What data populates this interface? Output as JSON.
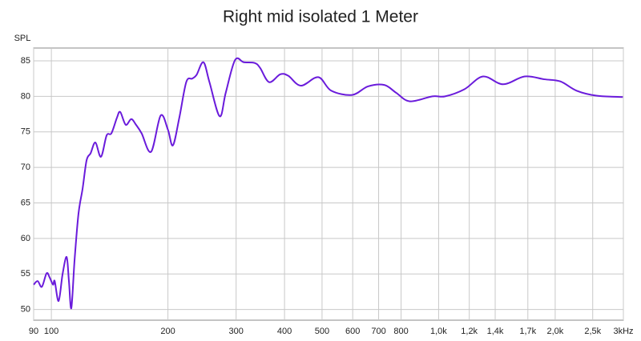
{
  "chart_data": {
    "type": "line",
    "title": "Right mid isolated 1 Meter",
    "y_label": "SPL",
    "log_x": true,
    "grid": true,
    "xlim": [
      90,
      3000
    ],
    "ylim": [
      48.5,
      86.8
    ],
    "xticks": [
      90,
      100,
      200,
      300,
      400,
      500,
      600,
      700,
      800,
      {
        "value": 1000,
        "label": "1,0k"
      },
      {
        "value": 1200,
        "label": "1,2k"
      },
      {
        "value": 1400,
        "label": "1,4k"
      },
      {
        "value": 1700,
        "label": "1,7k"
      },
      {
        "value": 2000,
        "label": "2,0k"
      },
      {
        "value": 2500,
        "label": "2,5k"
      },
      {
        "value": 3000,
        "label": "3kHz"
      }
    ],
    "yticks": [
      50,
      55,
      60,
      65,
      70,
      75,
      80,
      85
    ],
    "series": [
      {
        "color": "#6a1bdb",
        "x": [
          90,
          92.2,
          94.5,
          97.2,
          99,
          101,
          102,
          104.4,
          106.9,
          109.5,
          111,
          112.6,
          114.8,
          117.5,
          120.4,
          123.3,
          126.3,
          129.9,
          134.3,
          138.9,
          142.9,
          147.7,
          150.6,
          155.6,
          160.8,
          165.4,
          171,
          180.9,
          191.5,
          200,
          206,
          214,
          223,
          231,
          237,
          247,
          256,
          272,
          282,
          298,
          314,
          335,
          346,
          365,
          390,
          409,
          441,
          489,
          528,
          598,
          657,
          724,
          777,
          843,
          963,
          1039,
          1166,
          1302,
          1467,
          1668,
          1876,
          2063,
          2271,
          2554,
          2990
        ],
        "values": [
          53.5,
          54,
          53.2,
          55.1,
          54.5,
          53.5,
          54,
          51.2,
          55,
          57.4,
          54,
          50.2,
          57,
          63.5,
          67,
          71,
          72,
          73.5,
          71.5,
          74.5,
          74.8,
          77,
          77.8,
          76,
          76.8,
          76,
          74.8,
          72.2,
          77.3,
          75.3,
          73.1,
          77,
          82,
          82.5,
          83,
          84.8,
          82,
          77.2,
          80.5,
          85.1,
          84.8,
          84.7,
          84,
          82,
          83.1,
          82.9,
          81.5,
          82.7,
          80.8,
          80.2,
          81.4,
          81.6,
          80.5,
          79.3,
          80,
          80,
          81,
          82.8,
          81.7,
          82.8,
          82.4,
          82.1,
          80.8,
          80.1,
          79.9
        ]
      }
    ]
  }
}
